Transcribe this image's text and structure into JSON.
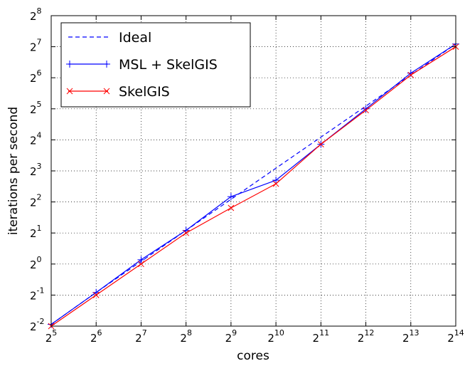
{
  "chart_data": {
    "type": "line",
    "xlabel": "cores",
    "ylabel": "iterations per second",
    "x_scale": "log2",
    "y_scale": "log2",
    "x": [
      32,
      64,
      128,
      256,
      512,
      1024,
      2048,
      4096,
      8192,
      16384
    ],
    "xlim": [
      32,
      16384
    ],
    "ylim": [
      0.25,
      256
    ],
    "x_ticks": [
      {
        "base": "2",
        "exp": "5"
      },
      {
        "base": "2",
        "exp": "6"
      },
      {
        "base": "2",
        "exp": "7"
      },
      {
        "base": "2",
        "exp": "8"
      },
      {
        "base": "2",
        "exp": "9"
      },
      {
        "base": "2",
        "exp": "10"
      },
      {
        "base": "2",
        "exp": "11"
      },
      {
        "base": "2",
        "exp": "12"
      },
      {
        "base": "2",
        "exp": "13"
      },
      {
        "base": "2",
        "exp": "14"
      }
    ],
    "y_ticks": [
      {
        "base": "2",
        "exp": "-2"
      },
      {
        "base": "2",
        "exp": "-1"
      },
      {
        "base": "2",
        "exp": "0"
      },
      {
        "base": "2",
        "exp": "1"
      },
      {
        "base": "2",
        "exp": "2"
      },
      {
        "base": "2",
        "exp": "3"
      },
      {
        "base": "2",
        "exp": "4"
      },
      {
        "base": "2",
        "exp": "5"
      },
      {
        "base": "2",
        "exp": "6"
      },
      {
        "base": "2",
        "exp": "7"
      },
      {
        "base": "2",
        "exp": "8"
      }
    ],
    "grid": true,
    "legend_position": "top-left",
    "series": [
      {
        "name": "Ideal",
        "color": "#0000ff",
        "style": "dashed",
        "marker": "none",
        "values": [
          0.26,
          0.53,
          1.06,
          2.12,
          4.24,
          8.5,
          17,
          34,
          68,
          136
        ]
      },
      {
        "name": "MSL + SkelGIS",
        "color": "#0000ff",
        "style": "solid",
        "marker": "plus",
        "values": [
          0.26,
          0.53,
          1.1,
          2.12,
          4.5,
          6.5,
          14.5,
          32,
          71,
          136
        ]
      },
      {
        "name": "SkelGIS",
        "color": "#ff0000",
        "style": "solid",
        "marker": "x",
        "values": [
          0.25,
          0.5,
          1.0,
          2.0,
          3.5,
          6.0,
          14.5,
          31,
          68,
          128
        ]
      }
    ]
  }
}
